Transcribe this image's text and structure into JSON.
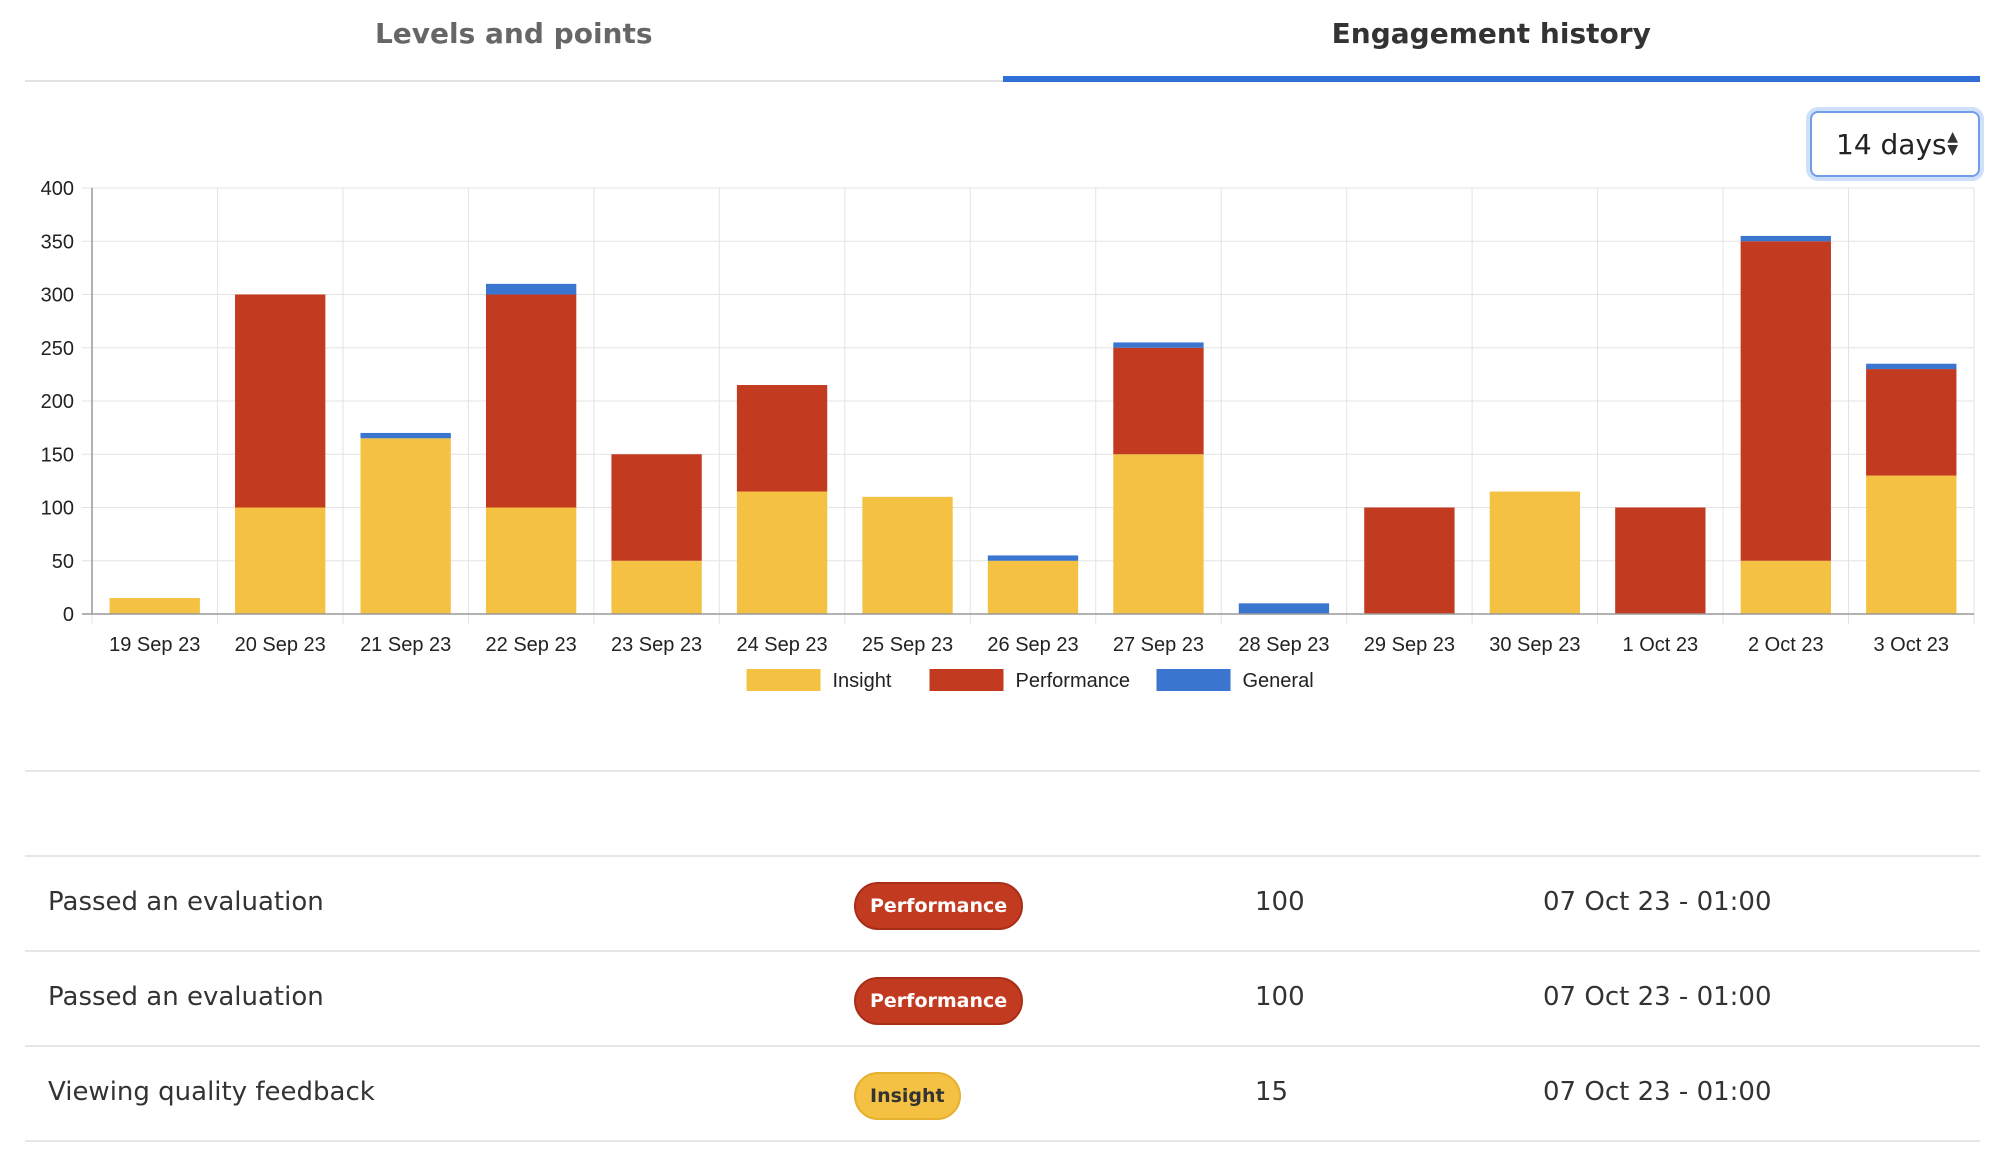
{
  "tabs": [
    {
      "label": "Levels and points",
      "active": false
    },
    {
      "label": "Engagement history",
      "active": true
    }
  ],
  "period_select": {
    "value": "14 days"
  },
  "colors": {
    "insight": "#f4c143",
    "performance": "#c23b21",
    "general": "#3a75cf",
    "accent": "#2f6fd6"
  },
  "chart_data": {
    "type": "bar",
    "stacked": true,
    "categories": [
      "19 Sep 23",
      "20 Sep 23",
      "21 Sep 23",
      "22 Sep 23",
      "23 Sep 23",
      "24 Sep 23",
      "25 Sep 23",
      "26 Sep 23",
      "27 Sep 23",
      "28 Sep 23",
      "29 Sep 23",
      "30 Sep 23",
      "1 Oct 23",
      "2 Oct 23",
      "3 Oct 23"
    ],
    "series": [
      {
        "name": "Insight",
        "color": "#f4c143",
        "values": [
          15,
          100,
          165,
          100,
          50,
          115,
          110,
          50,
          150,
          0,
          0,
          115,
          0,
          50,
          130
        ]
      },
      {
        "name": "Performance",
        "color": "#c23b21",
        "values": [
          0,
          200,
          0,
          200,
          100,
          100,
          0,
          0,
          100,
          0,
          100,
          0,
          100,
          300,
          100
        ]
      },
      {
        "name": "General",
        "color": "#3a75cf",
        "values": [
          0,
          0,
          5,
          10,
          0,
          0,
          0,
          5,
          5,
          10,
          0,
          0,
          0,
          5,
          5
        ]
      }
    ],
    "ylim": [
      0,
      400
    ],
    "yticks": [
      0,
      50,
      100,
      150,
      200,
      250,
      300,
      350,
      400
    ],
    "grid": true,
    "legend": "bottom"
  },
  "history": [
    {
      "description": "Passed an evaluation",
      "category": "Performance",
      "points": "100",
      "date": "07 Oct 23 - 01:00"
    },
    {
      "description": "Passed an evaluation",
      "category": "Performance",
      "points": "100",
      "date": "07 Oct 23 - 01:00"
    },
    {
      "description": "Viewing quality feedback",
      "category": "Insight",
      "points": "15",
      "date": "07 Oct 23 - 01:00"
    }
  ]
}
